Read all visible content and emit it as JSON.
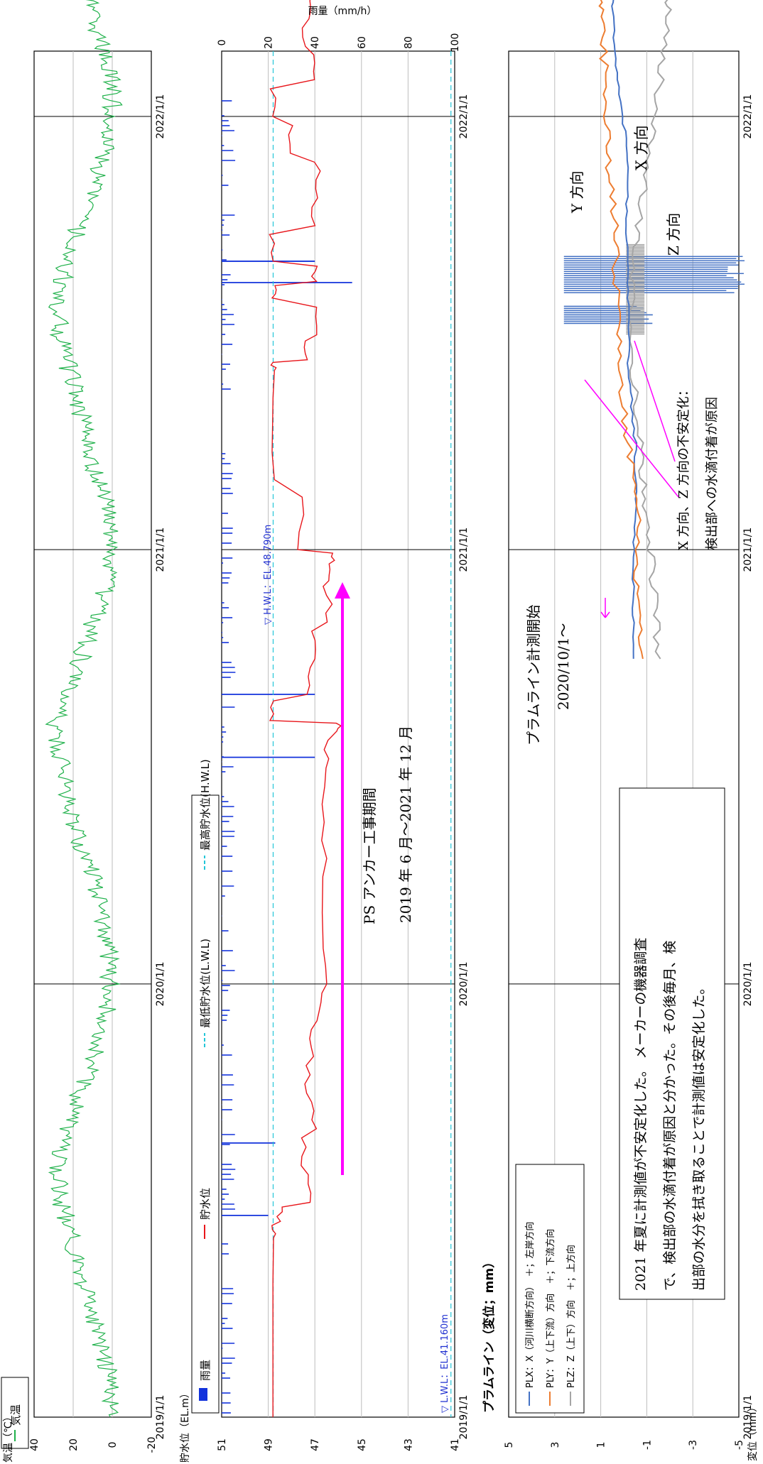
{
  "chart_data": [
    {
      "type": "line",
      "panel": "temperature",
      "x_axis": {
        "ticks": [
          "2019/1/1",
          "2020/1/1",
          "2021/1/1",
          "2022/1/1"
        ],
        "range": [
          "2019/1/1",
          "2022/6/1"
        ]
      },
      "ylabel": "気温（℃）",
      "ylim": [
        -20,
        40
      ],
      "yticks": [
        -20,
        0,
        20,
        40
      ],
      "grid": true,
      "legend": [
        "気温"
      ],
      "series": [
        {
          "name": "気温",
          "color": "#1fb14a",
          "x": [
            "2019/1/1",
            "2019/2/1",
            "2019/3/1",
            "2019/4/1",
            "2019/5/1",
            "2019/6/1",
            "2019/7/1",
            "2019/8/1",
            "2019/9/1",
            "2019/10/1",
            "2019/11/1",
            "2019/12/1",
            "2020/1/1",
            "2020/2/1",
            "2020/3/1",
            "2020/4/1",
            "2020/5/1",
            "2020/6/1",
            "2020/7/1",
            "2020/8/1",
            "2020/9/1",
            "2020/10/1",
            "2020/11/1",
            "2020/12/1",
            "2021/1/1",
            "2021/2/1",
            "2021/3/1",
            "2021/4/1",
            "2021/5/1",
            "2021/6/1",
            "2021/7/1",
            "2021/8/1",
            "2021/9/1",
            "2021/10/1",
            "2021/11/1",
            "2021/12/1",
            "2022/1/1",
            "2022/2/1",
            "2022/3/1",
            "2022/4/1",
            "2022/5/1"
          ],
          "values": [
            1,
            1,
            5,
            11,
            16,
            21,
            26,
            29,
            24,
            17,
            9,
            3,
            1,
            2,
            6,
            10,
            17,
            22,
            25,
            30,
            25,
            16,
            10,
            3,
            0,
            2,
            8,
            12,
            17,
            22,
            27,
            28,
            23,
            17,
            10,
            4,
            0,
            0,
            6,
            11,
            17
          ]
        }
      ]
    },
    {
      "type": "line",
      "panel": "water-level-rain",
      "x_axis": {
        "ticks": [
          "2019/1/1",
          "2020/1/1",
          "2021/1/1",
          "2022/1/1"
        ]
      },
      "ylabel": "貯水位（EL.m）",
      "ylim": [
        41,
        51
      ],
      "yticks": [
        41,
        43,
        45,
        47,
        49,
        51
      ],
      "y2label": "雨量（mm/h）",
      "y2lim": [
        0,
        100
      ],
      "y2ticks": [
        0,
        20,
        40,
        60,
        80,
        100
      ],
      "grid": true,
      "legend": [
        "雨量",
        "貯水位",
        "最低貯水位(L.W.L)",
        "最高貯水位(H.W.L)"
      ],
      "hwl": {
        "label": "▽ H.W.L：EL.48.790m",
        "value": 48.79
      },
      "lwl": {
        "label": "▽ L.W.L：EL.41.160m",
        "value": 41.16
      },
      "series": [
        {
          "name": "貯水位",
          "color": "#e8161b",
          "x": [
            "2019/1/1",
            "2019/6/1",
            "2019/6/15",
            "2019/7/1",
            "2019/8/1",
            "2019/9/1",
            "2019/10/1",
            "2019/11/1",
            "2019/12/1",
            "2020/1/1",
            "2020/3/1",
            "2020/5/1",
            "2020/7/1",
            "2020/8/1",
            "2020/8/10",
            "2020/9/1",
            "2020/10/1",
            "2020/11/1",
            "2020/12/1",
            "2020/12/20",
            "2021/1/1",
            "2021/3/1",
            "2021/6/1",
            "2021/6/10",
            "2021/7/1",
            "2021/8/1",
            "2021/8/15",
            "2021/9/1",
            "2021/10/1",
            "2021/11/1",
            "2021/12/1",
            "2022/1/1",
            "2022/2/1",
            "2022/3/1",
            "2022/4/1",
            "2022/5/1"
          ],
          "values": [
            48.8,
            48.8,
            48.5,
            47.2,
            47.5,
            47.0,
            47.3,
            47.2,
            46.8,
            46.6,
            46.6,
            46.6,
            46.5,
            46.0,
            48.8,
            47.3,
            47.0,
            46.4,
            46.5,
            46.3,
            47.6,
            48.8,
            48.8,
            47.4,
            47.0,
            48.8,
            47.0,
            48.8,
            47.0,
            46.9,
            48.0,
            48.8,
            47.1,
            47.4,
            47.2,
            47.6
          ]
        },
        {
          "name": "雨量",
          "color": "#1232dc",
          "x": [
            "2019/6/20",
            "2019/8/20",
            "2020/7/10",
            "2020/9/1",
            "2021/8/14",
            "2021/9/1"
          ],
          "values": [
            20,
            23,
            40,
            40,
            56,
            40
          ]
        }
      ],
      "annotations": [
        "PS アンカー工事期間",
        "2019 年 6 月～2021 年 12 月"
      ]
    },
    {
      "type": "line",
      "panel": "plumb-line",
      "title": "プラムライン（変位；mm）",
      "x_axis": {
        "ticks": [
          "2019/1/1",
          "2020/1/1",
          "2021/1/1",
          "2022/1/1"
        ]
      },
      "ylabel": "変位（mm）",
      "ylim": [
        -5,
        5
      ],
      "yticks": [
        -5,
        -3,
        -1,
        1,
        3,
        5
      ],
      "grid": true,
      "legend": [
        "PLX：X（河川横断方向）　＋；左岸方向",
        "PLY：Y（上下流）方向　＋；下流方向",
        "PLZ：Z（上下）方向　＋；上方向"
      ],
      "series": [
        {
          "name": "PLX：X（河川横断方向）　＋；左岸方向",
          "color": "#4472c4",
          "x": [
            "2020/10/1",
            "2020/12/1",
            "2021/2/1",
            "2021/4/1",
            "2021/6/1",
            "2021/8/1",
            "2021/10/1",
            "2021/12/1",
            "2022/2/1",
            "2022/4/1",
            "2022/5/1"
          ],
          "values": [
            -0.4,
            -0.4,
            -0.5,
            -0.5,
            -0.2,
            -0.2,
            -0.1,
            -0.2,
            0.3,
            0.5,
            0.2
          ]
        },
        {
          "name": "PLY：Y（上下流）方向　＋；下流方向",
          "color": "#ed7d31",
          "x": [
            "2020/10/1",
            "2020/12/1",
            "2021/2/1",
            "2021/4/1",
            "2021/6/1",
            "2021/8/1",
            "2021/10/1",
            "2021/12/1",
            "2022/2/1",
            "2022/4/1",
            "2022/5/1"
          ],
          "values": [
            -0.7,
            -0.6,
            -0.6,
            -0.2,
            0.2,
            0.3,
            0.4,
            0.7,
            0.8,
            1.0,
            1.1
          ]
        },
        {
          "name": "PLZ：Z（上下）方向　＋；上方向",
          "color": "#a5a5a5",
          "x": [
            "2020/10/1",
            "2020/12/1",
            "2021/2/1",
            "2021/4/1",
            "2021/6/1",
            "2021/8/1",
            "2021/10/1",
            "2021/12/1",
            "2022/2/1",
            "2022/4/1",
            "2022/5/1"
          ],
          "values": [
            -1.5,
            -1.3,
            -1.0,
            -0.7,
            -0.4,
            -0.3,
            -0.6,
            -1.1,
            -1.6,
            -1.9,
            -1.7
          ]
        }
      ],
      "labels": {
        "x": "X 方向",
        "y": "Y 方向",
        "z": "Z 方向"
      },
      "start_note": [
        "プラムライン計測開始",
        "2020/10/1～"
      ],
      "unstable_note": [
        "X 方向、Z 方向の不安定化：",
        "検出部への水滴付着が原因"
      ],
      "text_box": [
        "2021 年夏に計測値が不安定化した。 メーカーの機器調査",
        "で、検出部の水滴付着が原因と分かった。その後毎月、検",
        "出部の水分を拭き取ることで計測値は安定化した。"
      ]
    }
  ]
}
